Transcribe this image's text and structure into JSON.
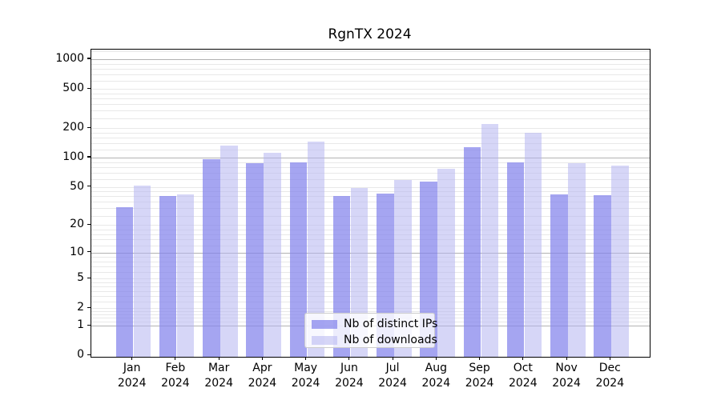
{
  "title": "RgnTX 2024",
  "chart_data": {
    "type": "bar",
    "title": "RgnTX 2024",
    "categories": [
      "Jan",
      "Feb",
      "Mar",
      "Apr",
      "May",
      "Jun",
      "Jul",
      "Aug",
      "Sep",
      "Oct",
      "Nov",
      "Dec"
    ],
    "year_label": "2024",
    "series": [
      {
        "name": "Nb of distinct IPs",
        "color": "rgba(130,130,235,0.72)",
        "values": [
          31,
          40,
          97,
          88,
          89,
          40,
          43,
          57,
          128,
          90,
          42,
          41
        ]
      },
      {
        "name": "Nb of downloads",
        "color": "rgba(180,180,240,0.55)",
        "values": [
          52,
          42,
          132,
          112,
          146,
          49,
          59,
          77,
          219,
          179,
          87,
          83
        ]
      }
    ],
    "xlabel": "",
    "ylabel": "",
    "y_scale": "log1p",
    "ylim": [
      0,
      1250
    ],
    "y_ticks": [
      0,
      1,
      2,
      5,
      10,
      20,
      50,
      100,
      200,
      500,
      1000
    ],
    "major_gridline_values": [
      1,
      10,
      100,
      1000
    ],
    "minor_gridline_subs": [
      1.2,
      1.4,
      1.6,
      1.8,
      2,
      2.5,
      3,
      3.5,
      4,
      4.5,
      5,
      6,
      7,
      8,
      9
    ],
    "minor_gridline_decades": [
      1,
      10,
      100
    ],
    "minor_gridline_extra": [
      1200
    ],
    "grid": "on",
    "legend_position": "lower center"
  },
  "colors": {
    "background": "#ffffff",
    "axis": "#000000",
    "major_grid": "#b2b2b2",
    "minor_grid": "#e8e8e8",
    "text": "#000000"
  }
}
